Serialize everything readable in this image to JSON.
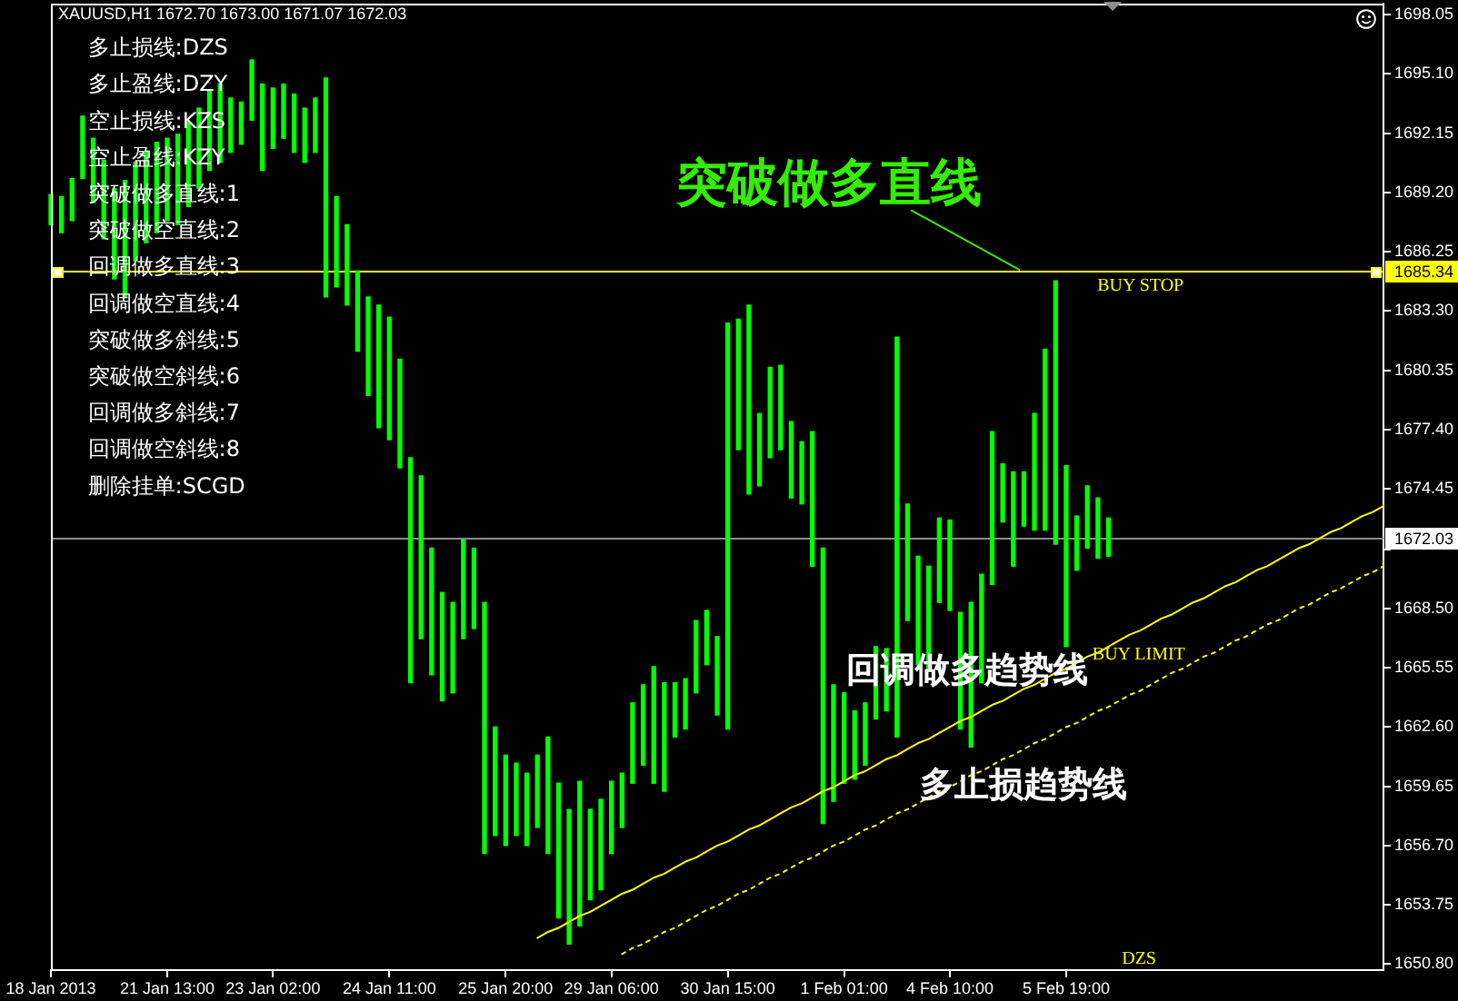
{
  "chart_data": {
    "type": "bar",
    "title": "XAUUSD,H1 1672.70 1673.00 1671.07 1672.03",
    "categories": [
      "18 Jan 2013",
      null,
      null,
      null,
      null,
      null,
      null,
      null,
      null,
      null,
      null,
      "21 Jan 13:00",
      null,
      null,
      null,
      null,
      null,
      null,
      null,
      null,
      null,
      "23 Jan 02:00",
      null,
      null,
      null,
      null,
      null,
      null,
      null,
      null,
      null,
      null,
      "24 Jan 11:00",
      null,
      null,
      null,
      null,
      null,
      null,
      null,
      null,
      null,
      null,
      "25 Jan 20:00",
      null,
      null,
      null,
      null,
      null,
      null,
      null,
      null,
      null,
      "29 Jan 06:00",
      null,
      null,
      null,
      null,
      null,
      null,
      null,
      null,
      null,
      null,
      "30 Jan 15:00",
      null,
      null,
      null,
      null,
      null,
      null,
      null,
      null,
      null,
      null,
      "1 Feb 01:00",
      null,
      null,
      null,
      null,
      null,
      null,
      null,
      null,
      null,
      "4 Feb 10:00",
      null,
      null,
      null,
      null,
      null,
      null,
      null,
      null,
      null,
      null,
      "5 Feb 19:00",
      null,
      null,
      null,
      null,
      null,
      null,
      null,
      null,
      null,
      null,
      null,
      null,
      null,
      null,
      null,
      null,
      null,
      null,
      null,
      null,
      null,
      null,
      null,
      null,
      null,
      null,
      null,
      null,
      null,
      null
    ],
    "series": [
      {
        "color": "#00ff00",
        "base": [
          1687.6,
          1687.2,
          1687.8,
          1689.9,
          1688.7,
          1686.9,
          1684.9,
          1684.0,
          1685.8,
          1686.7,
          1687.2,
          1687.8,
          1687.6,
          1688.5,
          1689.4,
          1690.3,
          1690.7,
          1691.2,
          1691.6,
          1692.8,
          1690.3,
          1691.4,
          1691.9,
          1691.2,
          1690.7,
          1691.2,
          1684.0,
          1684.5,
          1683.6,
          1681.3,
          1679.1,
          1677.5,
          1676.9,
          1675.5,
          1664.8,
          1667.0,
          1665.2,
          1663.9,
          1664.3,
          1667.0,
          1667.5,
          1656.3,
          1657.2,
          1656.7,
          1657.2,
          1656.7,
          1657.6,
          1656.3,
          1653.1,
          1651.8,
          1652.7,
          1654.0,
          1654.5,
          1656.3,
          1657.6,
          1659.8,
          1660.7,
          1659.8,
          1659.4,
          1662.1,
          1662.5,
          1664.3,
          1665.7,
          1663.2,
          1662.5,
          1676.4,
          1674.2,
          1674.6,
          1676.0,
          1676.4,
          1674.0,
          1673.7,
          1670.6,
          1657.8,
          1658.9,
          1659.8,
          1660.0,
          1660.7,
          1663.0,
          1663.4,
          1662.1,
          1667.9,
          1665.7,
          1665.4,
          1668.8,
          1668.4,
          1662.5,
          1661.6,
          1664.8,
          1669.7,
          1672.8,
          1670.6,
          1672.6,
          1672.4,
          1672.4,
          1671.7,
          1666.6,
          1670.4,
          1671.5,
          1671.0,
          1671.1,
          null,
          null,
          null,
          null,
          null,
          null,
          null,
          null,
          null,
          null,
          null,
          null,
          null,
          null,
          null,
          null,
          null,
          null,
          null,
          null,
          null,
          null,
          null,
          null,
          null,
          null
        ],
        "values": [
          1.5,
          1.8,
          2.1,
          3.1,
          3.2,
          3.9,
          4.5,
          5.8,
          4.9,
          4.5,
          4.5,
          4.1,
          4.5,
          4.2,
          4.0,
          4.0,
          3.9,
          2.7,
          2.1,
          3.0,
          4.3,
          3.0,
          2.7,
          2.9,
          2.7,
          2.7,
          10.9,
          4.5,
          4.0,
          4.0,
          4.9,
          6.1,
          6.1,
          5.4,
          11.2,
          8.1,
          6.3,
          5.4,
          4.5,
          4.9,
          4.0,
          12.5,
          5.4,
          4.5,
          3.6,
          3.6,
          3.6,
          5.8,
          6.7,
          6.7,
          7.2,
          4.5,
          4.5,
          3.6,
          2.7,
          4.0,
          4.0,
          5.8,
          5.4,
          2.7,
          2.5,
          3.6,
          2.7,
          3.9,
          20.2,
          6.5,
          9.4,
          3.6,
          4.5,
          4.2,
          3.8,
          3.1,
          6.7,
          13.7,
          5.8,
          4.5,
          3.4,
          3.1,
          3.6,
          3.1,
          19.9,
          5.8,
          5.4,
          5.2,
          4.2,
          4.5,
          5.8,
          7.2,
          5.4,
          7.6,
          2.9,
          4.7,
          2.7,
          5.8,
          9.0,
          13.1,
          9.0,
          2.7,
          3.1,
          3.0,
          1.9,
          null,
          null,
          null,
          null,
          null,
          null,
          null,
          null,
          null,
          null,
          null,
          null,
          null,
          null,
          null,
          null,
          null,
          null,
          null,
          null,
          null,
          null,
          null,
          null,
          null,
          null
        ]
      },
      {
        "type": "line",
        "name": "BUY LIMIT",
        "color": "#ffff00",
        "line_style": "solid",
        "values": [
          null,
          null,
          null,
          null,
          null,
          null,
          null,
          null,
          null,
          null,
          null,
          null,
          null,
          null,
          null,
          null,
          null,
          null,
          null,
          null,
          null,
          null,
          null,
          null,
          null,
          null,
          null,
          null,
          null,
          null,
          null,
          null,
          null,
          null,
          null,
          null,
          null,
          null,
          null,
          null,
          null,
          null,
          null,
          null,
          null,
          null,
          1652.1,
          1652.4,
          1652.6,
          1652.9,
          1653.2,
          1653.4,
          1653.7,
          1654.0,
          1654.3,
          1654.5,
          1654.8,
          1655.1,
          1655.3,
          1655.6,
          1655.9,
          1656.1,
          1656.4,
          1656.7,
          1656.9,
          1657.2,
          1657.5,
          1657.7,
          1658.0,
          1658.3,
          1658.6,
          1658.8,
          1659.1,
          1659.4,
          1659.6,
          1659.9,
          1660.2,
          1660.4,
          1660.7,
          1661.0,
          1661.2,
          1661.5,
          1661.8,
          1662.0,
          1662.3,
          1662.6,
          1662.9,
          1663.1,
          1663.4,
          1663.7,
          1663.9,
          1664.2,
          1664.5,
          1664.7,
          1665.0,
          1665.3,
          1665.5,
          1665.8,
          1666.1,
          1666.3,
          1666.6,
          1666.9,
          1667.2,
          1667.4,
          1667.7,
          1668.0,
          1668.2,
          1668.5,
          1668.8,
          1669.0,
          1669.3,
          1669.6,
          1669.8,
          1670.1,
          1670.4,
          1670.6,
          1670.9,
          1671.2,
          1671.5,
          1671.7,
          1672.0,
          1672.3,
          1672.5,
          1672.8,
          1673.1,
          1673.3,
          1673.6
        ]
      },
      {
        "type": "line",
        "color": "#ffff00",
        "line_style": "dotted",
        "values": [
          null,
          null,
          null,
          null,
          null,
          null,
          null,
          null,
          null,
          null,
          null,
          null,
          null,
          null,
          null,
          null,
          null,
          null,
          null,
          null,
          null,
          null,
          null,
          null,
          null,
          null,
          null,
          null,
          null,
          null,
          null,
          null,
          null,
          null,
          null,
          null,
          null,
          null,
          null,
          null,
          null,
          null,
          null,
          null,
          null,
          null,
          null,
          null,
          null,
          null,
          null,
          null,
          null,
          null,
          1651.3,
          1651.6,
          1651.8,
          1652.1,
          1652.4,
          1652.6,
          1652.9,
          1653.2,
          1653.5,
          1653.7,
          1654.0,
          1654.3,
          1654.5,
          1654.8,
          1655.1,
          1655.3,
          1655.6,
          1655.9,
          1656.1,
          1656.4,
          1656.7,
          1656.9,
          1657.2,
          1657.5,
          1657.7,
          1658.0,
          1658.3,
          1658.5,
          1658.8,
          1659.1,
          1659.4,
          1659.6,
          1659.9,
          1660.2,
          1660.4,
          1660.7,
          1661.0,
          1661.2,
          1661.5,
          1661.8,
          1662.0,
          1662.3,
          1662.6,
          1662.8,
          1663.1,
          1663.4,
          1663.6,
          1663.9,
          1664.2,
          1664.4,
          1664.7,
          1665.0,
          1665.3,
          1665.5,
          1665.8,
          1666.1,
          1666.3,
          1666.6,
          1666.9,
          1667.1,
          1667.4,
          1667.7,
          1667.9,
          1668.2,
          1668.5,
          1668.7,
          1669.0,
          1669.3,
          1669.5,
          1669.8,
          1670.1,
          1670.3,
          1670.6
        ]
      }
    ],
    "ylim": [
      1650.5,
      1698.6
    ],
    "yticks": [
      1698.05,
      {
        "value": 1695.1,
        "label": "1695.10"
      },
      1692.15,
      {
        "value": 1689.2,
        "label": "1689.20"
      },
      1686.25,
      {
        "value": 1683.3,
        "label": "1683.30"
      },
      1680.35,
      {
        "value": 1677.4,
        "label": "1677.40"
      },
      1674.45,
      {
        "value": 1671.45,
        "label": null
      },
      {
        "value": 1668.5,
        "label": "1668.50"
      },
      1665.55,
      {
        "value": 1662.6,
        "label": "1662.60"
      },
      1659.65,
      {
        "value": 1656.7,
        "label": "1656.70"
      },
      1653.75,
      {
        "value": 1650.8,
        "label": "1650.80"
      }
    ],
    "ref_lines": [
      {
        "axis": "y",
        "value": 1685.34,
        "label": "BUY STOP",
        "color": "#ffff00"
      },
      {
        "axis": "y",
        "value": 1672.03,
        "color": "#8c8c8c"
      }
    ],
    "annotations": [
      "多止损线:DZS",
      "多止盈线:DZY",
      "空止损线:KZS",
      "空止盈线:KZY",
      "突破做多直线:1",
      "突破做空直线:2",
      "回调做多直线:3",
      "回调做空直线:4",
      "突破做多斜线:5",
      "突破做空斜线:6",
      "回调做多斜线:7",
      "回调做空斜线:8",
      "删除挂单:SCGD",
      {
        "text": "突破做多直线",
        "y": 1685.34
      },
      "回调做多趋势线",
      "多止损趋势线",
      "DZS",
      {
        "text": "1685.34",
        "y": 1685.34
      },
      {
        "text": "1672.03",
        "y": 1672.03
      }
    ],
    "marker": "none"
  }
}
